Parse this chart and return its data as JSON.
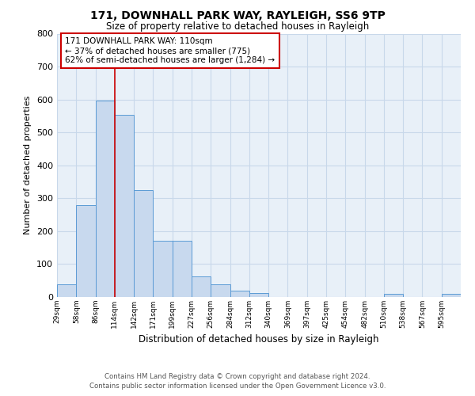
{
  "title": "171, DOWNHALL PARK WAY, RAYLEIGH, SS6 9TP",
  "subtitle": "Size of property relative to detached houses in Rayleigh",
  "xlabel": "Distribution of detached houses by size in Rayleigh",
  "ylabel": "Number of detached properties",
  "bin_labels": [
    "29sqm",
    "58sqm",
    "86sqm",
    "114sqm",
    "142sqm",
    "171sqm",
    "199sqm",
    "227sqm",
    "256sqm",
    "284sqm",
    "312sqm",
    "340sqm",
    "369sqm",
    "397sqm",
    "425sqm",
    "454sqm",
    "482sqm",
    "510sqm",
    "538sqm",
    "567sqm",
    "595sqm"
  ],
  "bar_heights": [
    38,
    278,
    596,
    553,
    325,
    170,
    170,
    63,
    38,
    20,
    12,
    0,
    0,
    0,
    0,
    0,
    0,
    10,
    0,
    0,
    10
  ],
  "bar_color": "#c8d9ee",
  "bar_edge_color": "#5b9bd5",
  "vline_x": 3,
  "vline_color": "#cc0000",
  "annotation_text": "171 DOWNHALL PARK WAY: 110sqm\n← 37% of detached houses are smaller (775)\n62% of semi-detached houses are larger (1,284) →",
  "annotation_box_color": "#ffffff",
  "annotation_box_edge_color": "#cc0000",
  "ylim": [
    0,
    800
  ],
  "yticks": [
    0,
    100,
    200,
    300,
    400,
    500,
    600,
    700,
    800
  ],
  "grid_color": "#c8d8ea",
  "bg_color": "#e8f0f8",
  "footer_line1": "Contains HM Land Registry data © Crown copyright and database right 2024.",
  "footer_line2": "Contains public sector information licensed under the Open Government Licence v3.0."
}
